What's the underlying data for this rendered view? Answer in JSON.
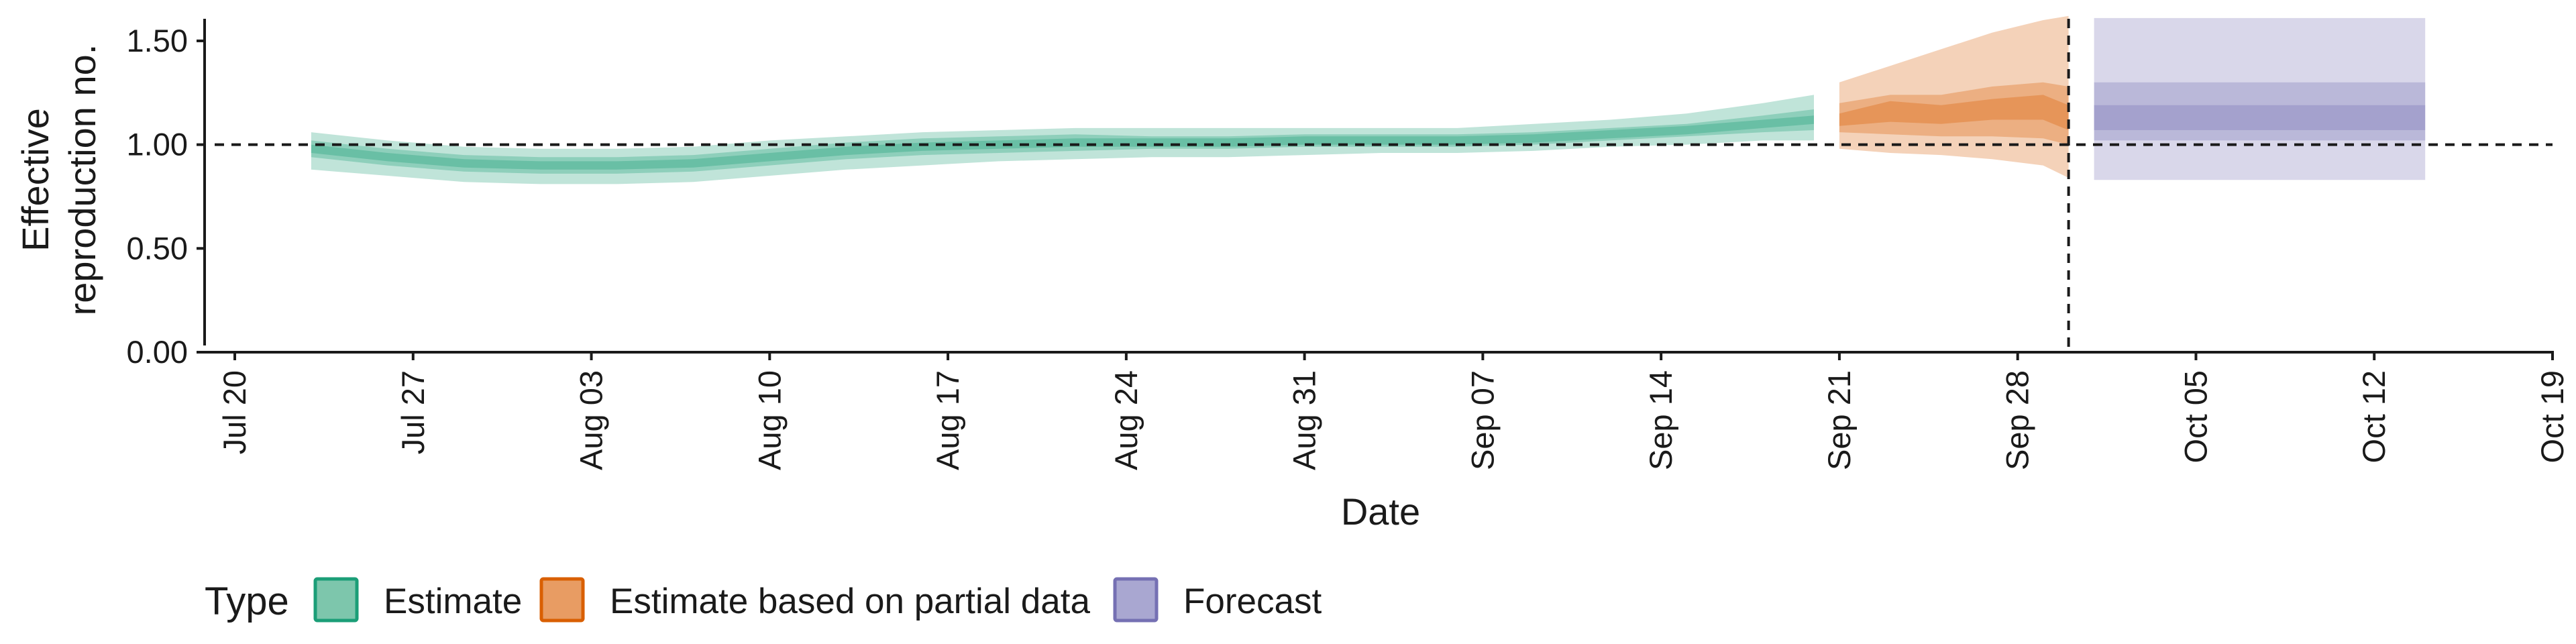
{
  "chart_data": {
    "type": "area",
    "xlabel": "Date",
    "ylabel": [
      "Effective",
      "reproduction no."
    ],
    "ylim": [
      0,
      1.6
    ],
    "y_ticks": [
      0.0,
      0.5,
      1.0,
      1.5
    ],
    "y_tick_labels": [
      "0.00",
      "0.50",
      "1.00",
      "1.50"
    ],
    "x_ticks": [
      "2020-07-20",
      "2020-07-27",
      "2020-08-03",
      "2020-08-10",
      "2020-08-17",
      "2020-08-24",
      "2020-08-31",
      "2020-09-07",
      "2020-09-14",
      "2020-09-21",
      "2020-09-28",
      "2020-10-05",
      "2020-10-12",
      "2020-10-19"
    ],
    "x_tick_labels": [
      "Jul 20",
      "Jul 27",
      "Aug 03",
      "Aug 10",
      "Aug 17",
      "Aug 24",
      "Aug 31",
      "Sep 07",
      "Sep 14",
      "Sep 21",
      "Sep 28",
      "Oct 05",
      "Oct 12",
      "Oct 19"
    ],
    "xlim": [
      "2020-07-20",
      "2020-10-19"
    ],
    "reference_line_y": 1.0,
    "reference_line_x": "2020-09-30",
    "legend": {
      "title": "Type",
      "position": "bottom",
      "items": [
        {
          "label": "Estimate",
          "fill": "#7dc6ac",
          "stroke": "#1b9e77"
        },
        {
          "label": "Estimate based on partial data",
          "fill": "#e89c63",
          "stroke": "#d95f02"
        },
        {
          "label": "Forecast",
          "fill": "#a9a7d1",
          "stroke": "#7570b3"
        }
      ]
    },
    "series": [
      {
        "name": "Estimate",
        "color": "#1b9e77",
        "x": [
          "2020-07-23",
          "2020-07-26",
          "2020-07-29",
          "2020-08-01",
          "2020-08-04",
          "2020-08-07",
          "2020-08-10",
          "2020-08-13",
          "2020-08-16",
          "2020-08-19",
          "2020-08-22",
          "2020-08-25",
          "2020-08-28",
          "2020-08-31",
          "2020-09-03",
          "2020-09-06",
          "2020-09-09",
          "2020-09-12",
          "2020-09-15",
          "2020-09-18",
          "2020-09-20"
        ],
        "median": [
          0.98,
          0.94,
          0.91,
          0.9,
          0.9,
          0.91,
          0.94,
          0.97,
          0.99,
          1.0,
          1.01,
          1.01,
          1.01,
          1.02,
          1.02,
          1.02,
          1.03,
          1.05,
          1.07,
          1.1,
          1.12
        ],
        "lower_90": [
          0.88,
          0.85,
          0.82,
          0.81,
          0.81,
          0.82,
          0.85,
          0.88,
          0.9,
          0.92,
          0.93,
          0.94,
          0.94,
          0.95,
          0.96,
          0.96,
          0.97,
          0.99,
          1.0,
          1.02,
          1.02
        ],
        "upper_90": [
          1.06,
          1.02,
          0.99,
          0.98,
          0.98,
          0.99,
          1.02,
          1.04,
          1.06,
          1.07,
          1.08,
          1.08,
          1.08,
          1.08,
          1.08,
          1.08,
          1.1,
          1.12,
          1.15,
          1.2,
          1.24
        ],
        "lower_50": [
          0.94,
          0.9,
          0.87,
          0.86,
          0.86,
          0.87,
          0.9,
          0.93,
          0.95,
          0.96,
          0.97,
          0.98,
          0.98,
          0.99,
          0.99,
          0.99,
          1.0,
          1.02,
          1.04,
          1.06,
          1.07
        ],
        "upper_50": [
          1.02,
          0.98,
          0.95,
          0.94,
          0.94,
          0.95,
          0.98,
          1.01,
          1.03,
          1.04,
          1.05,
          1.04,
          1.04,
          1.05,
          1.05,
          1.05,
          1.06,
          1.08,
          1.1,
          1.14,
          1.17
        ],
        "lower_20": [
          0.96,
          0.92,
          0.89,
          0.88,
          0.88,
          0.89,
          0.92,
          0.95,
          0.97,
          0.98,
          0.99,
          0.99,
          0.99,
          1.0,
          1.0,
          1.0,
          1.01,
          1.03,
          1.05,
          1.08,
          1.1
        ],
        "upper_20": [
          1.0,
          0.96,
          0.93,
          0.92,
          0.92,
          0.93,
          0.96,
          0.99,
          1.01,
          1.02,
          1.03,
          1.03,
          1.03,
          1.04,
          1.04,
          1.04,
          1.05,
          1.07,
          1.09,
          1.12,
          1.14
        ]
      },
      {
        "name": "Estimate based on partial data",
        "color": "#d95f02",
        "x": [
          "2020-09-21",
          "2020-09-23",
          "2020-09-25",
          "2020-09-27",
          "2020-09-29",
          "2020-09-30"
        ],
        "median": [
          1.12,
          1.16,
          1.14,
          1.17,
          1.18,
          1.13
        ],
        "lower_90": [
          0.98,
          0.96,
          0.95,
          0.93,
          0.9,
          0.84
        ],
        "upper_90": [
          1.3,
          1.38,
          1.46,
          1.54,
          1.6,
          1.62
        ],
        "lower_50": [
          1.06,
          1.05,
          1.04,
          1.04,
          1.03,
          1.0
        ],
        "upper_50": [
          1.2,
          1.24,
          1.24,
          1.28,
          1.3,
          1.28
        ],
        "lower_20": [
          1.09,
          1.11,
          1.1,
          1.12,
          1.12,
          1.07
        ],
        "upper_20": [
          1.15,
          1.21,
          1.19,
          1.22,
          1.24,
          1.19
        ]
      },
      {
        "name": "Forecast",
        "color": "#7570b3",
        "x": [
          "2020-10-01",
          "2020-10-14"
        ],
        "median": [
          1.13,
          1.13
        ],
        "lower_90": [
          0.83,
          0.83
        ],
        "upper_90": [
          1.61,
          1.61
        ],
        "lower_50": [
          1.02,
          1.02
        ],
        "upper_50": [
          1.3,
          1.3
        ],
        "lower_20": [
          1.07,
          1.07
        ],
        "upper_20": [
          1.19,
          1.19
        ]
      }
    ]
  }
}
